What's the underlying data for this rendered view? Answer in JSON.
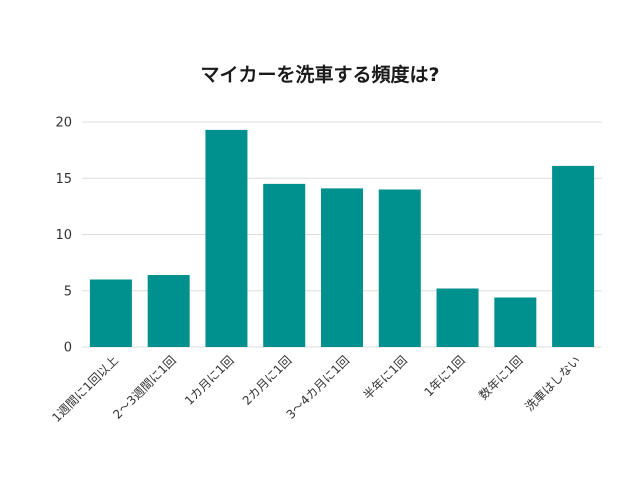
{
  "chart_data": {
    "type": "bar",
    "title": "マイカーを洗車する頻度は?",
    "xlabel": "",
    "ylabel": "",
    "categories": [
      "1週間に1回以上",
      "2～3週間に1回",
      "1カ月に1回",
      "2カ月に1回",
      "3～4カ月に1回",
      "半年に1回",
      "1年に1回",
      "数年に1回",
      "洗車はしない"
    ],
    "values": [
      6.0,
      6.4,
      19.3,
      14.5,
      14.1,
      14.0,
      5.2,
      4.4,
      16.1
    ],
    "ylim": [
      0,
      20
    ],
    "yticks": [
      0,
      5,
      10,
      15,
      20
    ],
    "grid": true,
    "legend": "none",
    "bar_color": "#00918f",
    "grid_color": "#dddddd"
  }
}
